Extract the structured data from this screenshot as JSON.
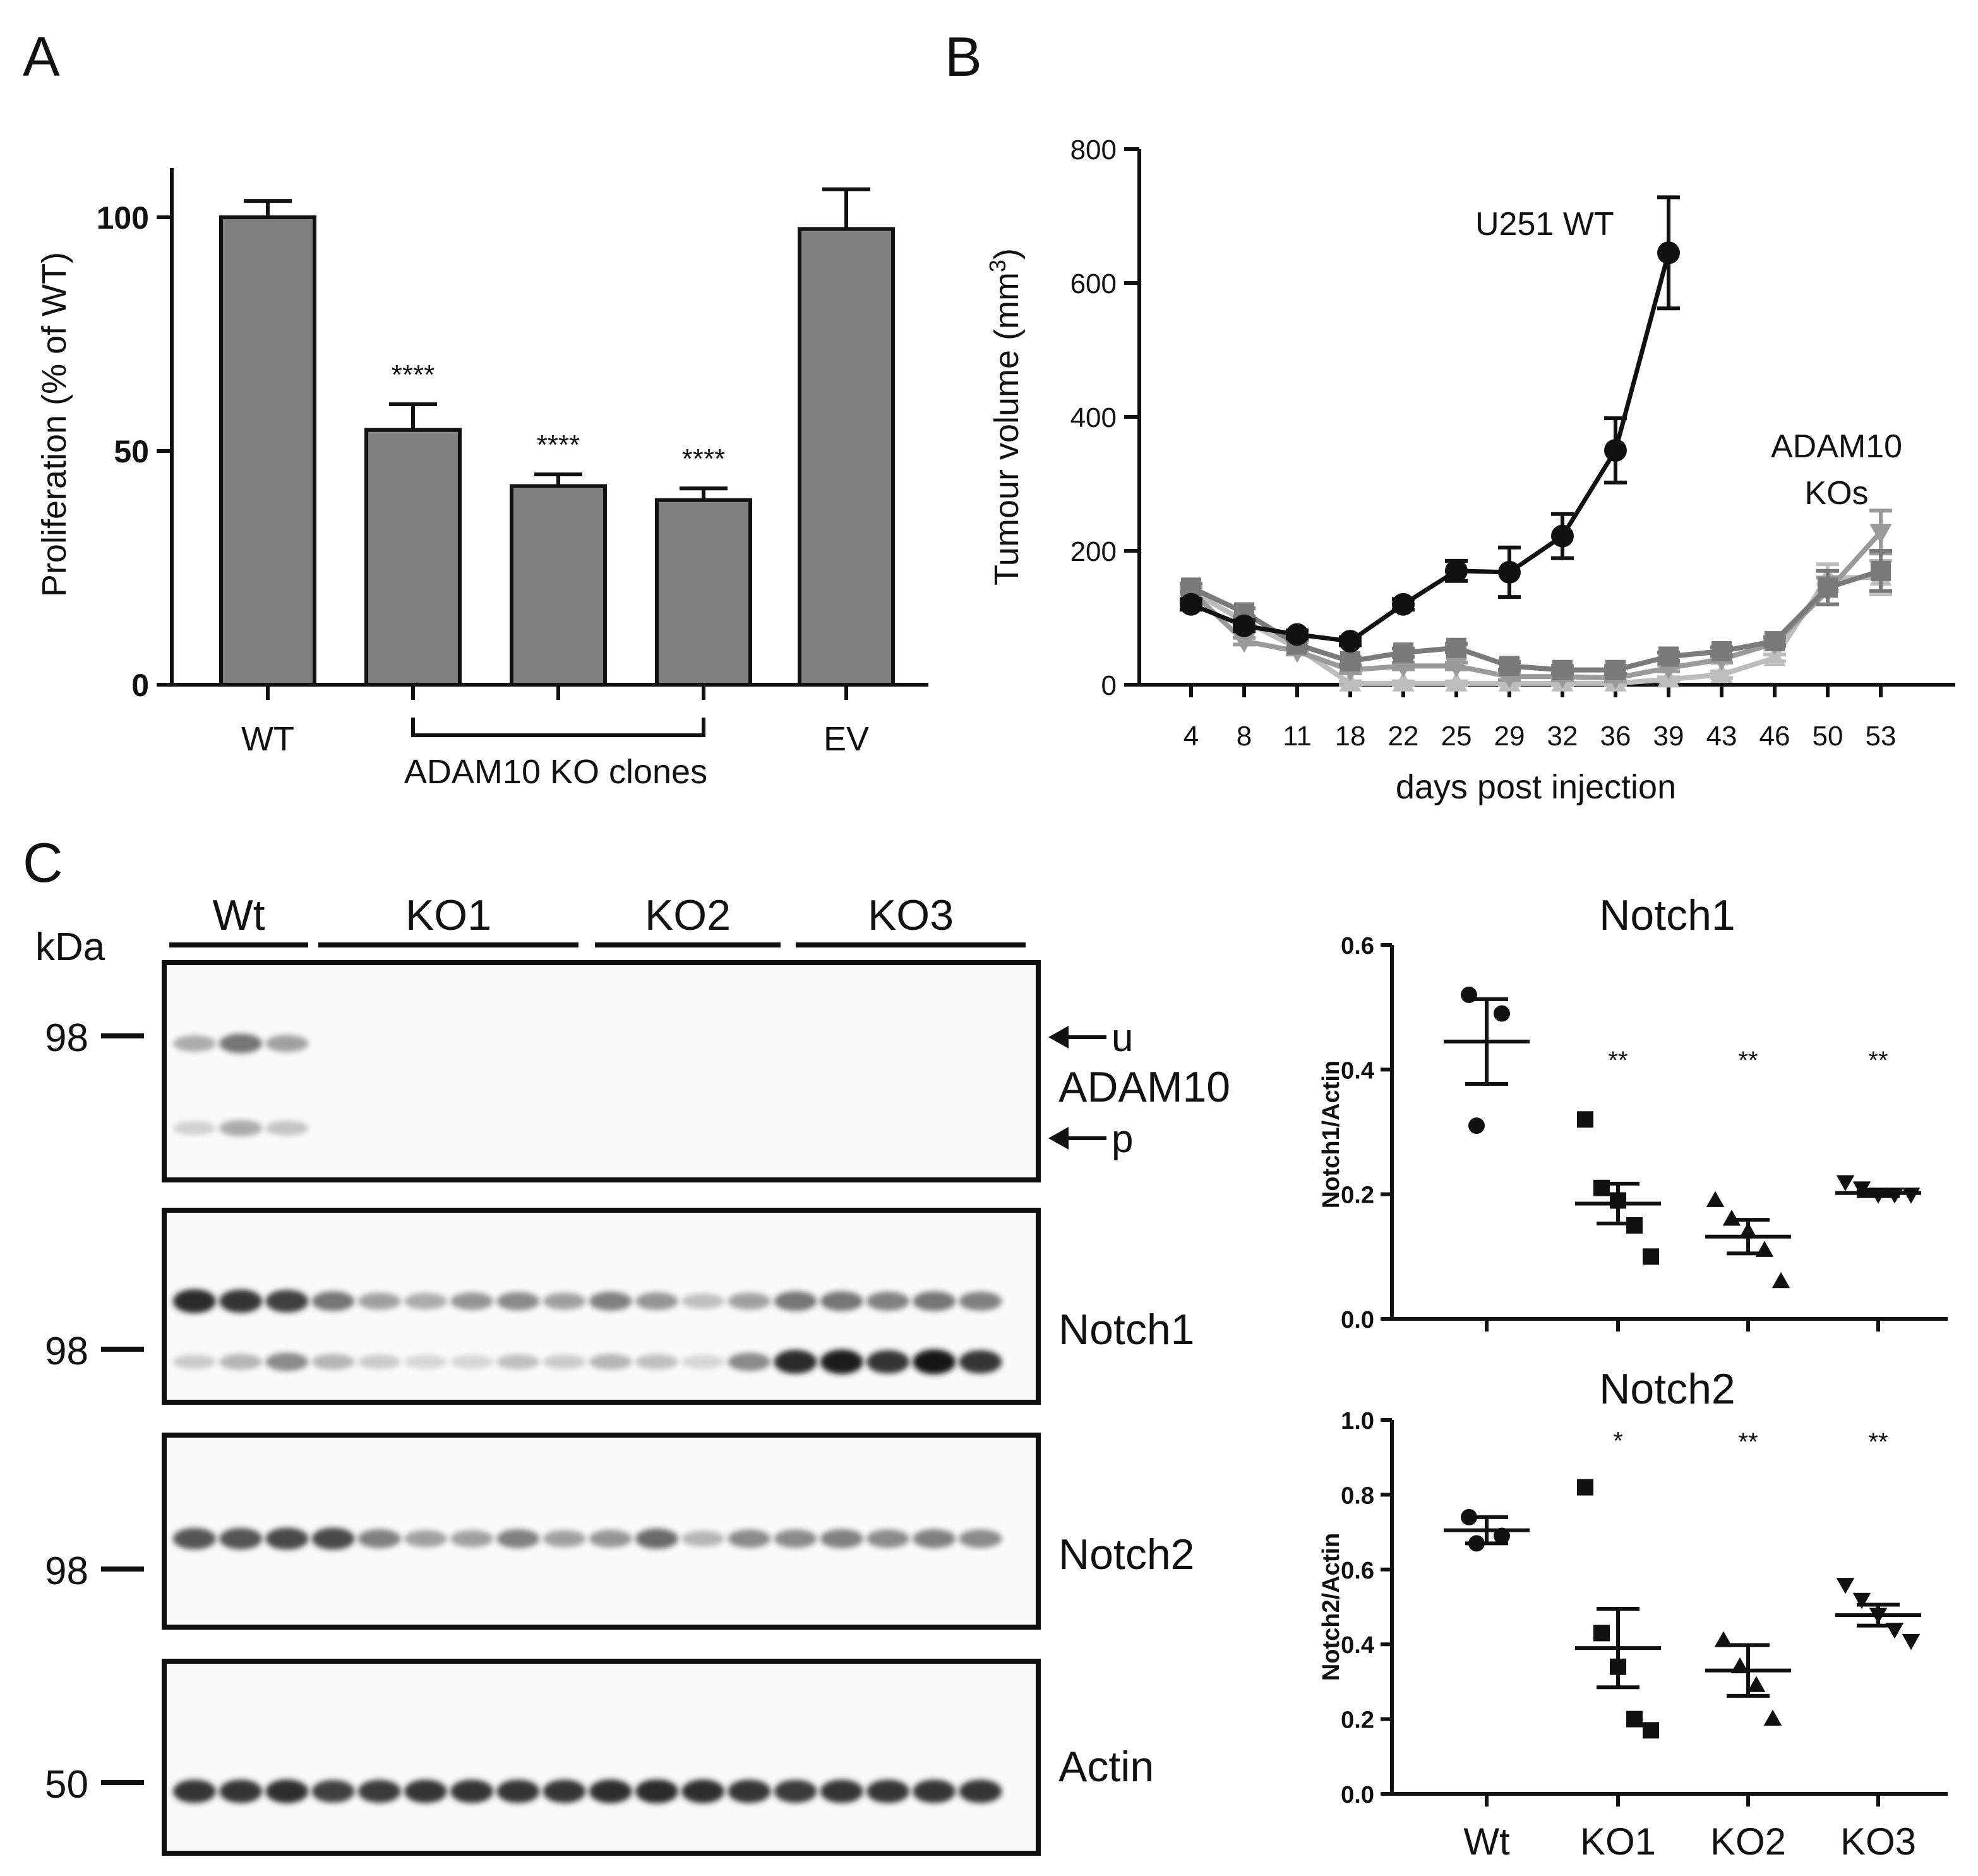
{
  "panel_labels": {
    "a": "A",
    "b": "B",
    "c": "C"
  },
  "chart_data": [
    {
      "panel": "A",
      "type": "bar",
      "ylabel": "Proliferation (% of WT)",
      "categories": [
        "WT",
        "",
        "",
        "",
        "EV"
      ],
      "group_label": "ADAM10 KO clones",
      "values": [
        100,
        54.5,
        42.5,
        39.5,
        97.5
      ],
      "errors": [
        3.5,
        5.5,
        2.5,
        2.5,
        8.5
      ],
      "significance": [
        "",
        "****",
        "****",
        "****",
        ""
      ],
      "yticks": [
        0,
        50,
        100
      ],
      "ylim": [
        0,
        110
      ],
      "colors": {
        "bar": "#808080",
        "edge": "#111111"
      }
    },
    {
      "panel": "B",
      "type": "line",
      "xlabel": "days post injection",
      "ylabel_main": "Tumour volume (mm",
      "ylabel_sup": "3",
      "ylabel_end": ")",
      "x": [
        4,
        8,
        11,
        18,
        22,
        25,
        29,
        32,
        36,
        39,
        43,
        46,
        50,
        53
      ],
      "yticks": [
        0,
        200,
        400,
        600,
        800
      ],
      "ylim": [
        0,
        800
      ],
      "annotations": {
        "wt_label": "U251  WT",
        "ko_line1": "ADAM10",
        "ko_line2": "KOs"
      },
      "series": [
        {
          "marker": "circle",
          "color": "#111111",
          "values": [
            120,
            88,
            75,
            65,
            120,
            170,
            168,
            222,
            350,
            645,
            null,
            null,
            null,
            null
          ],
          "errors": [
            8,
            8,
            6,
            6,
            8,
            15,
            37,
            33,
            48,
            83,
            null,
            null,
            null,
            null
          ]
        },
        {
          "marker": "square",
          "color": "#7a7a7a",
          "values": [
            145,
            108,
            60,
            35,
            48,
            55,
            28,
            22,
            22,
            42,
            50,
            65,
            145,
            170
          ],
          "errors": [
            6,
            6,
            6,
            6,
            6,
            6,
            6,
            6,
            6,
            6,
            6,
            6,
            25,
            30
          ]
        },
        {
          "marker": "triangle-down",
          "color": "#9a9a9a",
          "values": [
            140,
            65,
            50,
            22,
            28,
            28,
            12,
            12,
            10,
            25,
            38,
            62,
            140,
            228
          ],
          "errors": [
            5,
            5,
            5,
            5,
            5,
            5,
            5,
            5,
            5,
            5,
            5,
            5,
            20,
            32
          ]
        },
        {
          "marker": "triangle-up",
          "color": "#bdbdbd",
          "values": [
            140,
            95,
            55,
            2,
            2,
            2,
            2,
            2,
            2,
            8,
            15,
            40,
            160,
            160
          ],
          "errors": [
            5,
            5,
            5,
            3,
            3,
            3,
            3,
            3,
            3,
            3,
            5,
            5,
            20,
            25
          ]
        }
      ]
    },
    {
      "panel": "C-Notch1",
      "type": "scatter",
      "title": "Notch1",
      "ylabel": "Notch1/Actin",
      "categories": [
        "Wt",
        "KO1",
        "KO2",
        "KO3"
      ],
      "yticks": [
        "0.0",
        "0.2",
        "0.4",
        "0.6"
      ],
      "ylim": [
        0,
        0.6
      ],
      "markers": [
        "circle",
        "square",
        "triangle-up",
        "triangle-down"
      ],
      "points": [
        [
          0.52,
          0.49,
          0.31
        ],
        [
          0.32,
          0.21,
          0.19,
          0.15,
          0.1
        ],
        [
          0.19,
          0.16,
          0.14,
          0.11,
          0.06
        ],
        [
          0.22,
          0.21,
          0.2,
          0.2,
          0.2
        ]
      ],
      "means": [
        0.445,
        0.185,
        0.132,
        0.202
      ],
      "sems": [
        0.068,
        0.032,
        0.027,
        0.005
      ],
      "significance": [
        "",
        "**",
        "**",
        "**"
      ]
    },
    {
      "panel": "C-Notch2",
      "type": "scatter",
      "title": "Notch2",
      "ylabel": "Notch2/Actin",
      "categories": [
        "Wt",
        "KO1",
        "KO2",
        "KO3"
      ],
      "yticks": [
        "0.0",
        "0.2",
        "0.4",
        "0.6",
        "0.8",
        "1.0"
      ],
      "ylim": [
        0,
        1.0
      ],
      "markers": [
        "circle",
        "square",
        "triangle-up",
        "triangle-down"
      ],
      "points": [
        [
          0.74,
          0.69,
          0.67
        ],
        [
          0.82,
          0.43,
          0.34,
          0.2,
          0.17
        ],
        [
          0.41,
          0.34,
          0.29,
          0.2
        ],
        [
          0.56,
          0.52,
          0.48,
          0.44,
          0.41
        ]
      ],
      "means": [
        0.705,
        0.39,
        0.33,
        0.478
      ],
      "sems": [
        0.035,
        0.105,
        0.068,
        0.028
      ],
      "significance": [
        "",
        "*",
        "**",
        "**"
      ]
    }
  ],
  "blot": {
    "kda_label": "kDa",
    "groups": [
      {
        "label": "Wt",
        "lanes": 3
      },
      {
        "label": "KO1",
        "lanes": 6
      },
      {
        "label": "KO2",
        "lanes": 4
      },
      {
        "label": "KO3",
        "lanes": 5
      }
    ],
    "panels": [
      {
        "name": "ADAM10",
        "marker": "98",
        "arrow_u": "u",
        "arrow_p": "p",
        "band_upper": [
          0.3,
          0.55,
          0.35,
          0,
          0,
          0,
          0,
          0,
          0,
          0,
          0,
          0,
          0,
          0,
          0,
          0,
          0,
          0
        ],
        "band_lower": [
          0.12,
          0.3,
          0.18,
          0,
          0,
          0,
          0,
          0,
          0,
          0,
          0,
          0,
          0,
          0,
          0,
          0,
          0,
          0
        ]
      },
      {
        "name": "Notch1",
        "marker": "98",
        "band_upper": [
          0.9,
          0.85,
          0.8,
          0.55,
          0.35,
          0.3,
          0.4,
          0.45,
          0.35,
          0.5,
          0.4,
          0.2,
          0.35,
          0.55,
          0.55,
          0.5,
          0.55,
          0.5
        ],
        "band_lower": [
          0.15,
          0.25,
          0.45,
          0.25,
          0.15,
          0.1,
          0.1,
          0.2,
          0.15,
          0.25,
          0.2,
          0.1,
          0.45,
          0.9,
          0.95,
          0.85,
          0.98,
          0.85
        ]
      },
      {
        "name": "Notch2",
        "marker": "98",
        "band_upper": [
          0.7,
          0.7,
          0.75,
          0.75,
          0.5,
          0.35,
          0.35,
          0.5,
          0.35,
          0.4,
          0.6,
          0.25,
          0.45,
          0.45,
          0.5,
          0.45,
          0.5,
          0.45
        ]
      },
      {
        "name": "Actin",
        "marker": "50",
        "band_upper": [
          0.85,
          0.85,
          0.88,
          0.8,
          0.82,
          0.85,
          0.85,
          0.85,
          0.85,
          0.88,
          0.9,
          0.88,
          0.85,
          0.82,
          0.85,
          0.85,
          0.85,
          0.85
        ]
      }
    ]
  }
}
